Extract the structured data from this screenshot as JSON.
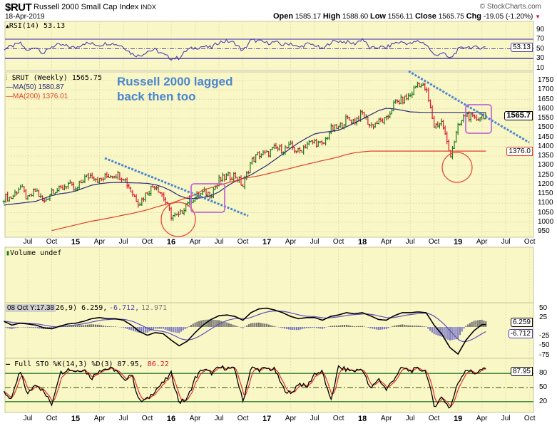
{
  "header": {
    "symbol": "$RUT",
    "name": "Russell 2000 Small Cap Index",
    "exchange": "INDX",
    "date": "18-Apr-2019",
    "brand": "© StockCharts.com",
    "open_label": "Open",
    "open": "1585.17",
    "high_label": "High",
    "high": "1588.60",
    "low_label": "Low",
    "low": "1556.11",
    "close_label": "Close",
    "close": "1565.75",
    "chg_label": "Chg",
    "chg": "-19.05 (-1.20%)",
    "chg_icon": "down-triangle-icon"
  },
  "annotation": {
    "text": "Russell 2000 lagged\nback then too",
    "color": "#4a86cf"
  },
  "legends": {
    "rsi": "RSI(14) 53.13",
    "price": "$RUT (Weekly) 1565.75",
    "ma50": "MA(50) 1580.87",
    "ma200": "MA(200) 1376.01",
    "volume": "Volume undef",
    "macd_prefix": "08 Oct Y:17.38",
    "macd_params": "26,9) 6.259,",
    "macd_signal": "-6.712,",
    "macd_hist": "12.971",
    "sto": "Full STO %K(14,3) %D(3) 87.95,",
    "sto_d": "86.22"
  },
  "tags": {
    "rsi": "53.13",
    "price": "1565.7",
    "ma200": "1376.0",
    "macd": "6.259",
    "macd_signal": "-6.712",
    "sto": "87.95"
  },
  "colors": {
    "panel_bg": "#faf7c6",
    "up": "#1a7a1a",
    "down": "#d8142e",
    "ma50": "#2b2b7a",
    "ma200": "#e0402a",
    "rsi": "#4b3fae",
    "trend": "#4a86cf",
    "circle": "#e8493a",
    "box": "#c06bd6"
  },
  "chart_data": {
    "type": "line",
    "title": "$RUT Russell 2000 Small Cap Index (Weekly)",
    "x_start": "Apr 2014",
    "x_ticks": [
      {
        "m": 6,
        "label": "Jul"
      },
      {
        "m": 9,
        "label": "Oct"
      },
      {
        "m": 12,
        "label": "15",
        "year": true
      },
      {
        "m": 15,
        "label": "Apr"
      },
      {
        "m": 18,
        "label": "Jul"
      },
      {
        "m": 21,
        "label": "Oct"
      },
      {
        "m": 24,
        "label": "16",
        "year": true
      },
      {
        "m": 27,
        "label": "Apr"
      },
      {
        "m": 30,
        "label": "Jul"
      },
      {
        "m": 33,
        "label": "Oct"
      },
      {
        "m": 36,
        "label": "17",
        "year": true
      },
      {
        "m": 39,
        "label": "Apr"
      },
      {
        "m": 42,
        "label": "Jul"
      },
      {
        "m": 45,
        "label": "Oct"
      },
      {
        "m": 48,
        "label": "18",
        "year": true
      },
      {
        "m": 51,
        "label": "Apr"
      },
      {
        "m": 54,
        "label": "Jul"
      },
      {
        "m": 57,
        "label": "Oct"
      },
      {
        "m": 60,
        "label": "19",
        "year": true
      },
      {
        "m": 63,
        "label": "Apr"
      },
      {
        "m": 66,
        "label": "Jul"
      },
      {
        "m": 69,
        "label": "Oct"
      }
    ],
    "price_ticks": [
      1750,
      1700,
      1650,
      1600,
      1550,
      1500,
      1450,
      1400,
      1350,
      1300,
      1250,
      1200,
      1150,
      1100,
      1050,
      1000,
      950
    ],
    "price_ylim": [
      920,
      1770
    ],
    "monthly_close": [
      1130,
      1130,
      1190,
      1120,
      1170,
      1100,
      1170,
      1170,
      1205,
      1165,
      1230,
      1250,
      1220,
      1245,
      1255,
      1240,
      1160,
      1100,
      1160,
      1200,
      1135,
      1035,
      1030,
      1110,
      1130,
      1155,
      1150,
      1220,
      1240,
      1250,
      1190,
      1320,
      1360,
      1360,
      1390,
      1385,
      1400,
      1370,
      1415,
      1425,
      1405,
      1490,
      1500,
      1545,
      1535,
      1575,
      1510,
      1530,
      1540,
      1630,
      1645,
      1670,
      1740,
      1700,
      1510,
      1530,
      1350,
      1500,
      1575,
      1540,
      1565.75
    ],
    "ma50_monthly": [
      1090,
      1095,
      1100,
      1105,
      1110,
      1125,
      1140,
      1150,
      1155,
      1165,
      1180,
      1195,
      1203,
      1208,
      1210,
      1210,
      1208,
      1207,
      1205,
      1198,
      1185,
      1165,
      1140,
      1125,
      1125,
      1130,
      1140,
      1160,
      1190,
      1215,
      1232,
      1250,
      1275,
      1300,
      1330,
      1360,
      1392,
      1420,
      1445,
      1467,
      1475,
      1480,
      1486,
      1505,
      1525,
      1546,
      1568,
      1590,
      1603,
      1600,
      1592,
      1584,
      1582,
      1581,
      1580.87
    ],
    "ma50_start_month": 6,
    "ma200_monthly": [
      955,
      965,
      975,
      985,
      995,
      1005,
      1012,
      1020,
      1028,
      1037,
      1045,
      1055,
      1065,
      1078,
      1090,
      1100,
      1115,
      1130,
      1145,
      1170,
      1182,
      1195,
      1207,
      1218,
      1230,
      1238,
      1245,
      1255,
      1265,
      1275,
      1285,
      1296,
      1306,
      1316,
      1326,
      1335,
      1345,
      1358,
      1367,
      1372,
      1376.01
    ],
    "ma200_start_month": 9,
    "rsi": {
      "ticks": [
        90,
        70,
        50,
        30,
        10
      ],
      "monthly": [
        50,
        55,
        62,
        45,
        55,
        40,
        55,
        58,
        55,
        52,
        62,
        60,
        58,
        62,
        60,
        55,
        40,
        35,
        45,
        48,
        38,
        30,
        31,
        48,
        52,
        55,
        52,
        64,
        66,
        62,
        45,
        68,
        66,
        62,
        64,
        58,
        62,
        52,
        60,
        58,
        48,
        64,
        66,
        64,
        60,
        71,
        50,
        54,
        52,
        62,
        64,
        60,
        66,
        60,
        36,
        42,
        29,
        48,
        55,
        52,
        53.13
      ],
      "overbought": 70,
      "oversold": 30
    },
    "macd": {
      "ticks": [
        50,
        25,
        0,
        -25,
        -50,
        -75
      ],
      "monthly": [
        15,
        5,
        10,
        8,
        5,
        -2,
        -5,
        2,
        8,
        10,
        15,
        22,
        25,
        22,
        22,
        18,
        5,
        -12,
        -22,
        -15,
        -18,
        -35,
        -50,
        -38,
        -15,
        5,
        20,
        30,
        32,
        28,
        18,
        38,
        48,
        50,
        45,
        38,
        28,
        22,
        25,
        25,
        18,
        28,
        32,
        38,
        35,
        38,
        30,
        20,
        18,
        30,
        38,
        38,
        40,
        38,
        5,
        -20,
        -55,
        -72,
        -35,
        -10,
        6.259
      ]
    },
    "sto": {
      "ticks": [
        80,
        50,
        20
      ],
      "monthly": [
        40,
        25,
        85,
        35,
        60,
        40,
        15,
        80,
        90,
        85,
        90,
        70,
        88,
        90,
        88,
        65,
        80,
        20,
        25,
        45,
        60,
        80,
        18,
        25,
        70,
        90,
        80,
        92,
        92,
        88,
        20,
        92,
        88,
        90,
        88,
        50,
        35,
        60,
        50,
        80,
        83,
        20,
        93,
        88,
        85,
        90,
        45,
        70,
        45,
        70,
        92,
        85,
        90,
        85,
        10,
        30,
        5,
        60,
        90,
        80,
        87.95
      ]
    }
  }
}
